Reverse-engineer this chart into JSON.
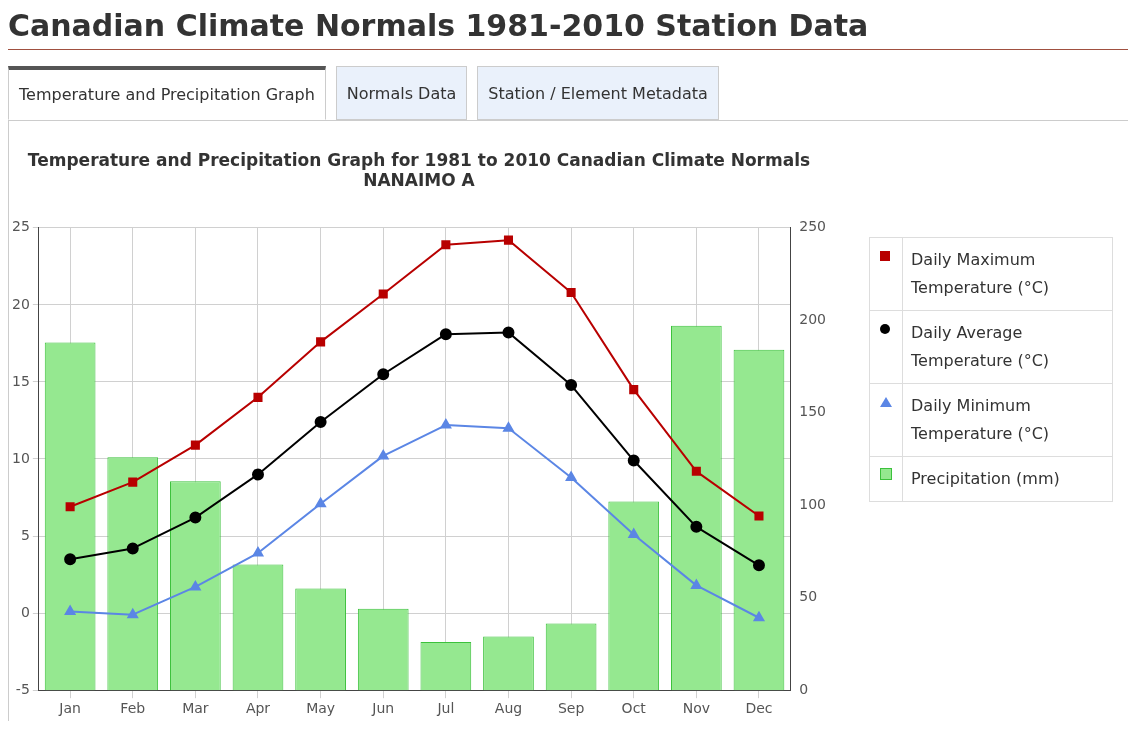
{
  "chart_data": {
    "type": "line",
    "title": "Temperature and Precipitation Graph for 1981 to 2010 Canadian Climate Normals",
    "subtitle": "NANAIMO A",
    "annotations": [
      "Canadian Climate Normals 1981-2010 Station Data",
      "Temperature and Precipitation Graph",
      "Normals Data",
      "Station / Element Metadata"
    ],
    "categories": [
      "Jan",
      "Feb",
      "Mar",
      "Apr",
      "May",
      "Jun",
      "Jul",
      "Aug",
      "Sep",
      "Oct",
      "Nov",
      "Dec"
    ],
    "series": [
      {
        "name": "Daily Maximum Temperature (°C)",
        "marker": "square",
        "color": "#b80000",
        "values": [
          6.9,
          8.5,
          10.9,
          14.0,
          17.6,
          20.7,
          23.9,
          24.2,
          20.8,
          14.5,
          9.2,
          6.3
        ]
      },
      {
        "name": "Daily Average Temperature (°C)",
        "marker": "circle",
        "color": "#000000",
        "values": [
          3.5,
          4.2,
          6.2,
          9.0,
          12.4,
          15.5,
          18.1,
          18.2,
          14.8,
          9.9,
          5.6,
          3.1
        ]
      },
      {
        "name": "Daily Minimum Temperature (°C)",
        "marker": "triangle",
        "color": "#5b86e5",
        "values": [
          0.1,
          -0.1,
          1.7,
          3.9,
          7.1,
          10.2,
          12.2,
          12.0,
          8.8,
          5.1,
          1.8,
          -0.3
        ]
      },
      {
        "name": "Precipitation (mm)",
        "type": "bar",
        "axis": "y2",
        "color": "#95e890",
        "values": [
          188,
          126,
          113,
          68,
          55,
          44,
          26,
          29,
          36,
          102,
          197,
          184
        ]
      }
    ],
    "ylim": [
      -5,
      25
    ],
    "yticks": [
      -5,
      0,
      5,
      10,
      15,
      20,
      25
    ],
    "y2lim": [
      0,
      250
    ],
    "y2ticks": [
      0,
      50,
      100,
      150,
      200,
      250
    ],
    "grid": true,
    "legend": "right",
    "line_style": "solid"
  }
}
